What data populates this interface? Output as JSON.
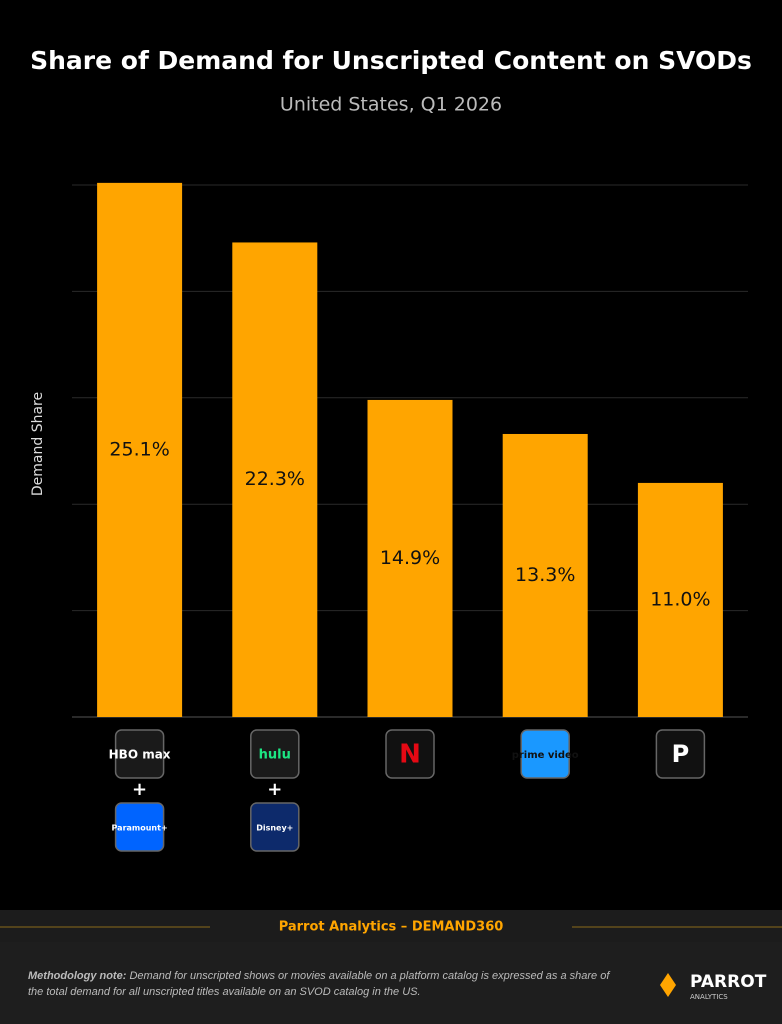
{
  "chart_data": {
    "type": "bar",
    "title": "Share of Demand for Unscripted Content on SVODs",
    "subtitle": "United States, Q1 2026",
    "y_label": "Demand Share",
    "categories": [
      "HBO max",
      "hulu",
      "N",
      "prime video",
      "P"
    ],
    "partners": [
      "Paramount+",
      "Disney+",
      null,
      null,
      null
    ],
    "values": [
      25.1,
      22.3,
      14.9,
      13.3,
      11.0
    ],
    "value_labels": [
      "25.1%",
      "22.3%",
      "14.9%",
      "13.3%",
      "11.0%"
    ],
    "color": "#ffa500",
    "ylim": [
      0,
      25
    ],
    "yticks": [
      0,
      5,
      10,
      15,
      20,
      25
    ],
    "grid": true
  },
  "footer": {
    "source": "Parrot Analytics – DEMAND360",
    "note_label": "Methodology note:",
    "note": "Demand for unscripted shows or movies available on a platform catalog is expressed as a share of the total demand for all unscripted titles available on an SVOD catalog in the US.",
    "brand": "PARROT",
    "brand_sub": "ANALYTICS"
  }
}
